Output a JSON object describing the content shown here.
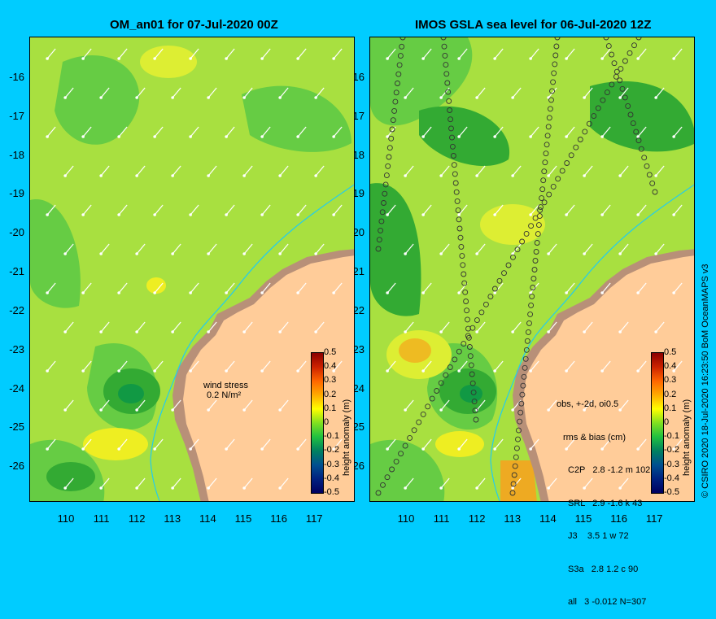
{
  "left_panel": {
    "title": "OM_an01 for 07-Jul-2020 00Z"
  },
  "right_panel": {
    "title": "IMOS GSLA sea level  for 06-Jul-2020 12Z"
  },
  "y_axis_labels": [
    "-16",
    "-17",
    "-18",
    "-19",
    "-20",
    "-21",
    "-22",
    "-23",
    "-24",
    "-25",
    "-26"
  ],
  "x_axis_labels": [
    "110",
    "111",
    "112",
    "113",
    "114",
    "115",
    "116",
    "117"
  ],
  "colorbar": {
    "label": "height anomaly (m)",
    "ticks": [
      "0.5",
      "0.4",
      "0.3",
      "0.2",
      "0.1",
      "0",
      "-0.1",
      "-0.2",
      "-0.3",
      "-0.4",
      "-0.5"
    ],
    "colors": [
      "#8b0000",
      "#cc2200",
      "#ff6600",
      "#ffaa00",
      "#ffff00",
      "#80e020",
      "#20c040",
      "#008060",
      "#005090",
      "#002080",
      "#000060"
    ]
  },
  "wind_note": {
    "line1": "wind stress",
    "line2": "0.2 N/m²"
  },
  "stats_header": {
    "line1": "obs, +-2d, oi0.5",
    "line2": "rms & bias (cm)"
  },
  "stats_rows": [
    "C2P   2.8 -1.2 m 102",
    "SRL   2.9 -1.6 k 43",
    "J3    3.5 1 w 72",
    "S3a   2.8 1.2 c 90",
    "all   3 -0.012 N=307"
  ],
  "credit": "© CSIRO 2020   18-Jul-2020 16:23:50 BoM OceanMAPS v3",
  "colors": {
    "background": "#00ccff",
    "land": "#ffcc99",
    "coast_shelf": "#b89078"
  }
}
